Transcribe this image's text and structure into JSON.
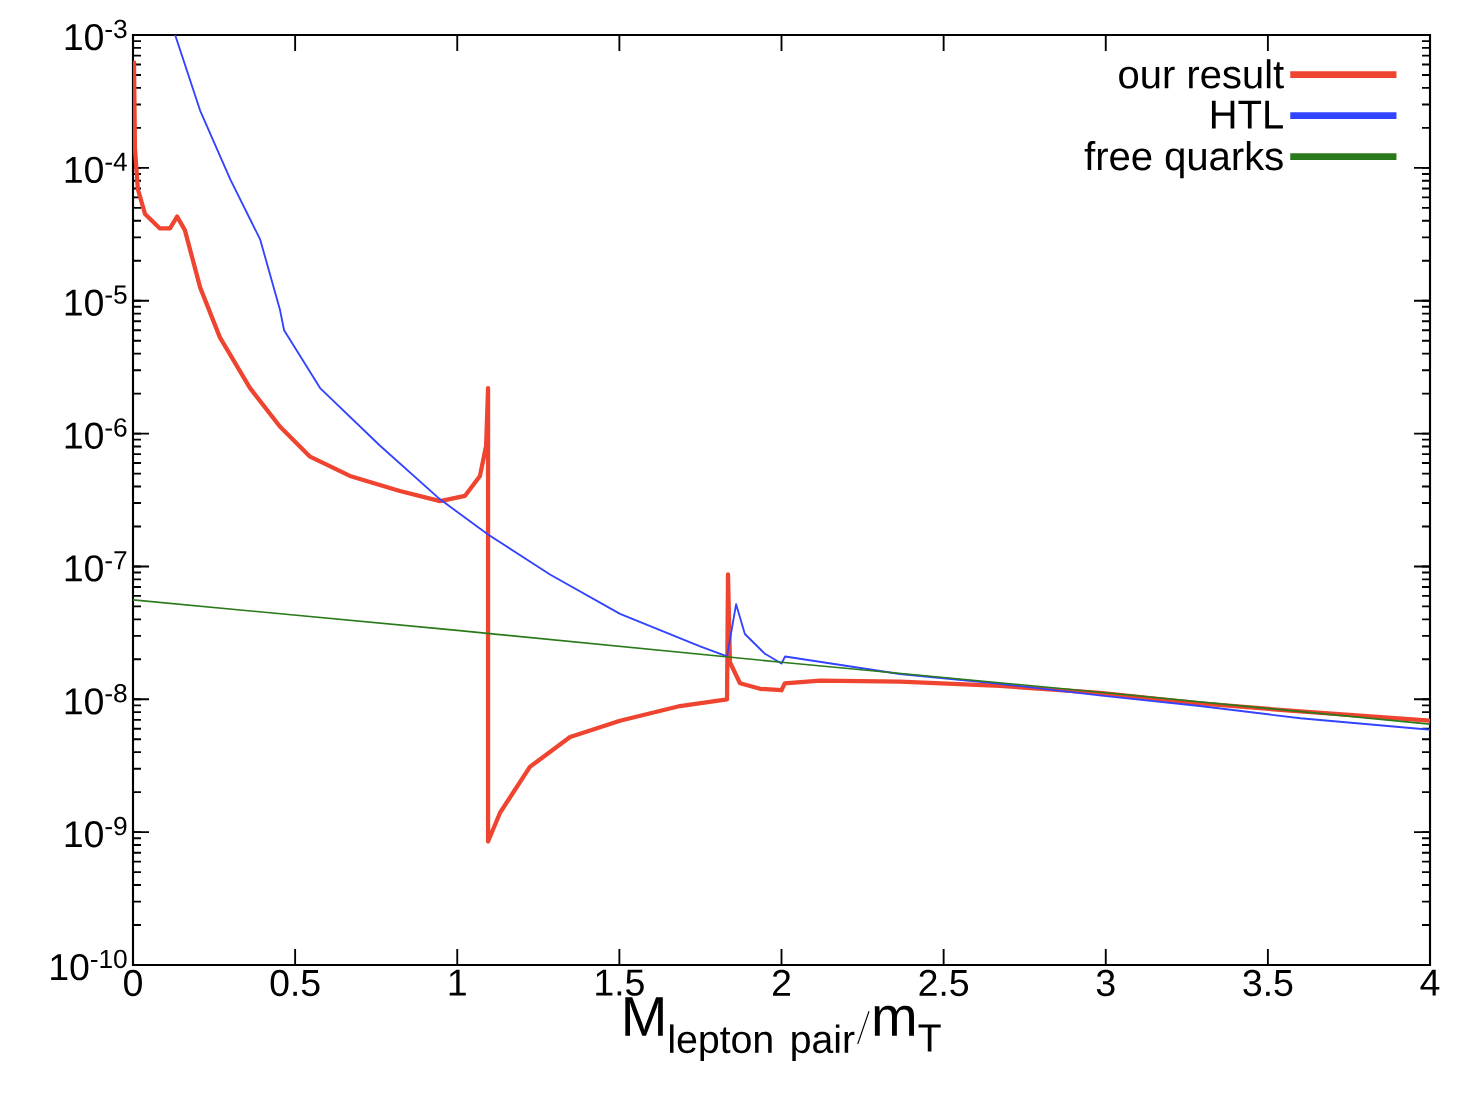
{
  "chart_data": {
    "type": "line",
    "xlabel": "\\mathrm{M}_{\\mathrm{lepton\\ pair}}/\\mathrm{m}_{\\mathrm{T}}",
    "xlim": [
      0,
      4
    ],
    "xticks": [
      0,
      0.5,
      1,
      1.5,
      2,
      2.5,
      3,
      3.5,
      4
    ],
    "ylim": [
      1e-10,
      0.001
    ],
    "log": true,
    "yticks": [
      {
        "value": 1e-10,
        "label": "10$^{-10}$"
      },
      {
        "value": 1e-09,
        "label": "10$^{-9}$"
      },
      {
        "value": 1e-08,
        "label": "10$^{-8}$"
      },
      {
        "value": 1e-07,
        "label": "10$^{-7}$"
      },
      {
        "value": 1e-06,
        "label": "10$^{-6}$"
      },
      {
        "value": 1e-05,
        "label": "10$^{-5}$"
      },
      {
        "value": 0.0001,
        "label": "10$^{-4}$"
      },
      {
        "value": 0.001,
        "label": "10$^{-3}$"
      }
    ],
    "legend": "top right",
    "series": [
      {
        "name": "our result",
        "color": "#ee4430",
        "x": [
          0.003,
          0.006,
          0.015,
          0.037,
          0.083,
          0.114,
          0.136,
          0.16,
          0.207,
          0.268,
          0.361,
          0.453,
          0.546,
          0.669,
          0.823,
          0.947,
          1.024,
          1.07,
          1.089,
          1.095,
          1.095,
          1.132,
          1.224,
          1.348,
          1.502,
          1.687,
          1.832,
          1.835,
          1.841,
          1.872,
          1.934,
          2.0,
          2.01,
          2.119,
          2.365,
          2.674,
          2.982,
          3.29,
          3.6,
          4.0
        ],
        "values": [
          0.00064,
          0.00014,
          6.9e-05,
          4.5e-05,
          3.5e-05,
          3.5e-05,
          4.3e-05,
          3.4e-05,
          1.26e-05,
          5.3e-06,
          2.2e-06,
          1.13e-06,
          6.7e-07,
          4.8e-07,
          3.7e-07,
          3.1e-07,
          3.4e-07,
          4.8e-07,
          8.1e-07,
          2.2e-06,
          8.5e-10,
          1.4e-09,
          3.1e-09,
          5.2e-09,
          6.9e-09,
          8.9e-09,
          1e-08,
          8.7e-08,
          1.9e-08,
          1.32e-08,
          1.2e-08,
          1.17e-08,
          1.32e-08,
          1.38e-08,
          1.36e-08,
          1.26e-08,
          1.12e-08,
          9.3e-09,
          8.1e-09,
          6.9e-09
        ]
      },
      {
        "name": "HTL",
        "color": "#3344ff",
        "x": [
          0.13,
          0.207,
          0.3,
          0.392,
          0.453,
          0.466,
          0.577,
          0.762,
          0.947,
          1.095,
          1.286,
          1.502,
          1.749,
          1.832,
          1.86,
          1.887,
          1.949,
          2.0,
          2.011,
          2.365,
          2.674,
          2.98,
          3.29,
          3.6,
          4.0
        ],
        "values": [
          0.001,
          0.00027,
          8.2e-05,
          2.9e-05,
          8.6e-06,
          6e-06,
          2.2e-06,
          8.1e-07,
          3.2e-07,
          1.74e-07,
          8.7e-08,
          4.4e-08,
          2.5e-08,
          2.1e-08,
          5.2e-08,
          3.1e-08,
          2.2e-08,
          1.86e-08,
          2.1e-08,
          1.55e-08,
          1.31e-08,
          1.07e-08,
          8.9e-09,
          7.2e-09,
          5.9e-09
        ]
      },
      {
        "name": "free quarks",
        "color": "#2a7a1a",
        "x": [
          0,
          1,
          2,
          3,
          4
        ],
        "values": [
          5.6e-08,
          3.3e-08,
          1.9e-08,
          1.12e-08,
          6.5e-09
        ]
      }
    ]
  }
}
